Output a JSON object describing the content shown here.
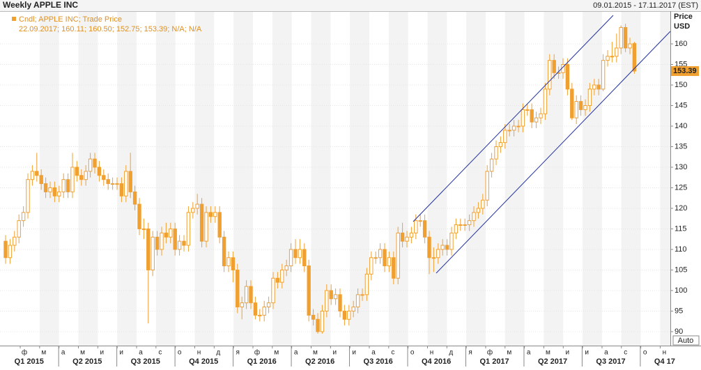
{
  "chart_data": {
    "type": "candlestick",
    "title": "Weekly APPLE INC",
    "date_range": "09.01.2015 - 17.11.2017 (EST)",
    "legend_title": "Cndl; APPLE INC; Trade Price",
    "legend_values": "22.09.2017; 160.11; 160.50; 152.75; 153.39; N/A; N/A",
    "y_axis_title": "Price",
    "y_axis_unit": "USD",
    "scale_button": "Auto",
    "color": "#f0a030",
    "grid": true,
    "ylim": [
      86.6,
      167.8
    ],
    "yticks": [
      90,
      95,
      100,
      105,
      110,
      115,
      120,
      125,
      130,
      135,
      140,
      145,
      150,
      155,
      160
    ],
    "month_labels": [
      "ф",
      "м",
      "а",
      "м",
      "и",
      "и",
      "а",
      "с",
      "о",
      "н",
      "д",
      "я",
      "ф",
      "м",
      "а",
      "м",
      "и",
      "и",
      "а",
      "с",
      "о",
      "н",
      "д",
      "я",
      "ф",
      "м",
      "а",
      "м",
      "и",
      "и",
      "а",
      "с",
      "о",
      "н"
    ],
    "quarter_labels": [
      "Q1 2015",
      "Q2 2015",
      "Q3 2015",
      "Q4 2015",
      "Q1 2016",
      "Q2 2016",
      "Q3 2016",
      "Q4 2016",
      "Q1 2017",
      "Q2 2017",
      "Q3 2017",
      "Q4 17"
    ],
    "open": [
      112,
      108,
      111,
      113,
      117,
      119,
      127,
      129,
      128,
      126,
      124,
      125,
      123,
      124,
      127,
      124,
      130,
      128,
      127,
      129,
      132,
      130,
      128,
      127,
      126,
      126,
      126,
      123,
      129,
      124,
      121,
      115,
      115,
      105,
      113,
      110,
      114,
      113,
      115,
      110,
      112,
      111,
      119,
      120,
      121,
      112,
      119,
      118,
      119,
      113,
      106,
      108,
      105,
      96,
      97,
      101,
      97,
      94,
      94,
      96,
      97,
      103,
      102,
      105,
      106,
      110,
      108,
      110,
      106,
      94,
      93,
      90,
      95,
      100,
      98,
      99,
      95,
      93,
      95,
      96,
      99,
      99,
      104,
      108,
      108,
      110,
      106,
      108,
      103,
      114,
      112,
      113,
      114,
      117,
      117,
      113,
      108,
      108,
      110,
      111,
      110,
      114,
      116,
      116,
      116,
      117,
      119,
      120,
      122,
      129,
      132,
      135,
      136,
      139,
      139,
      140,
      140,
      144,
      144,
      141,
      142,
      143,
      149,
      156,
      153,
      153,
      155,
      149,
      142,
      146,
      144,
      145,
      149,
      150,
      149,
      156,
      157,
      157,
      159,
      164,
      159,
      160.11
    ],
    "high": [
      113.5,
      112.5,
      114.5,
      118.5,
      120.5,
      128.5,
      130.5,
      133.5,
      129.5,
      127.5,
      126.5,
      126.5,
      125.5,
      128.5,
      128.5,
      133.5,
      131.5,
      129.5,
      130.5,
      133.5,
      133.5,
      131.5,
      129.5,
      128.5,
      127.5,
      127.5,
      127.5,
      130.5,
      133.5,
      125.5,
      122.5,
      117.5,
      116.5,
      114.5,
      114.5,
      115.5,
      116.5,
      116.5,
      116.5,
      113.5,
      113.5,
      120.5,
      121.5,
      123.5,
      122.5,
      120.5,
      120.5,
      120.5,
      120.5,
      114.5,
      109.5,
      109.5,
      106.5,
      98.5,
      102.5,
      102.5,
      98.5,
      95.5,
      97.5,
      98.5,
      104.5,
      104.5,
      106.5,
      107.5,
      111.5,
      112.5,
      112.5,
      111.5,
      107.5,
      95.5,
      94.5,
      96.5,
      101.5,
      101.5,
      100.5,
      100.5,
      96.5,
      96.5,
      97.5,
      100.5,
      100.5,
      105.5,
      109.5,
      109.5,
      111.5,
      111.5,
      109.5,
      109.5,
      115.5,
      116.5,
      114.5,
      115.5,
      118.5,
      118.5,
      118.5,
      114.5,
      110.5,
      111.5,
      112.5,
      112.5,
      115.5,
      117.5,
      117.5,
      117.5,
      118.5,
      120.5,
      121.5,
      123.5,
      130.5,
      133.5,
      136.5,
      137.5,
      140.5,
      140.5,
      141.5,
      141.5,
      145.5,
      145.5,
      145.5,
      143.5,
      144.5,
      150.5,
      157.5,
      157.5,
      154.5,
      156.5,
      156.5,
      150.5,
      147.5,
      147.5,
      146.5,
      150.5,
      151.5,
      151.5,
      157.5,
      158.5,
      160.5,
      162.5,
      164.5,
      164.9,
      161.5,
      160.5
    ],
    "low": [
      106.5,
      106.5,
      109.5,
      111.5,
      115.5,
      117.5,
      125.5,
      126.5,
      124.5,
      122.5,
      122.5,
      121.5,
      121.5,
      122.5,
      122.5,
      122.5,
      126.5,
      125.5,
      125.5,
      127.5,
      128.5,
      126.5,
      125.5,
      124.5,
      124.5,
      124.5,
      121.5,
      121.5,
      122.5,
      119.5,
      113.5,
      112.5,
      92,
      103.5,
      108.5,
      108.5,
      111.5,
      111.5,
      108.5,
      108.5,
      109.5,
      109.5,
      117.5,
      118.5,
      110.5,
      110.5,
      116.5,
      116.5,
      111.5,
      104.5,
      104.5,
      102,
      94.5,
      93,
      95.5,
      95.5,
      93,
      92.5,
      92.5,
      94.5,
      95.5,
      100.5,
      100.5,
      103.5,
      104.5,
      106.5,
      106.5,
      104.5,
      92.5,
      91.5,
      89.5,
      89.5,
      93.5,
      96.5,
      96.5,
      93.5,
      91.5,
      91.5,
      93.5,
      94.5,
      97.5,
      97.5,
      102.5,
      106.5,
      106.5,
      104.5,
      104.5,
      101.5,
      101.5,
      110.5,
      110.5,
      111.5,
      112.5,
      115.5,
      111.5,
      104,
      104.5,
      106.5,
      108.5,
      108.5,
      108.5,
      112.5,
      114.5,
      114.5,
      114.5,
      115.5,
      117.5,
      118.5,
      120.5,
      127.5,
      130.5,
      133.5,
      134.5,
      137.5,
      137.5,
      138.5,
      138.5,
      142.5,
      139.5,
      139.5,
      140.5,
      141.5,
      147.5,
      151.5,
      151.5,
      151.5,
      147.5,
      141.5,
      140.5,
      142.5,
      142.5,
      143.5,
      147.5,
      147.5,
      148.5,
      154.5,
      155.5,
      155.5,
      157.5,
      158,
      157.5,
      152.75
    ],
    "close": [
      108,
      111,
      113,
      117,
      119,
      127,
      129,
      128,
      126,
      124,
      125,
      123,
      124,
      127,
      124,
      130,
      128,
      127,
      129,
      132,
      130,
      128,
      127,
      126,
      126,
      126,
      123,
      129,
      124,
      121,
      115,
      115,
      105,
      113,
      110,
      114,
      113,
      115,
      110,
      112,
      111,
      119,
      120,
      121,
      112,
      119,
      118,
      119,
      113,
      106,
      108,
      105,
      96,
      97,
      101,
      97,
      94,
      94,
      96,
      97,
      103,
      102,
      105,
      106,
      110,
      108,
      110,
      106,
      94,
      93,
      90,
      95,
      100,
      98,
      99,
      95,
      93,
      95,
      96,
      99,
      99,
      104,
      108,
      108,
      110,
      106,
      108,
      103,
      114,
      112,
      113,
      114,
      117,
      117,
      113,
      108,
      108,
      110,
      111,
      110,
      114,
      116,
      116,
      116,
      117,
      119,
      120,
      122,
      129,
      132,
      135,
      136,
      139,
      139,
      140,
      140,
      144,
      144,
      141,
      142,
      143,
      149,
      156,
      153,
      153,
      155,
      149,
      142,
      146,
      144,
      145,
      149,
      150,
      149,
      156,
      157,
      157,
      159,
      164,
      159,
      160,
      153.39
    ]
  }
}
